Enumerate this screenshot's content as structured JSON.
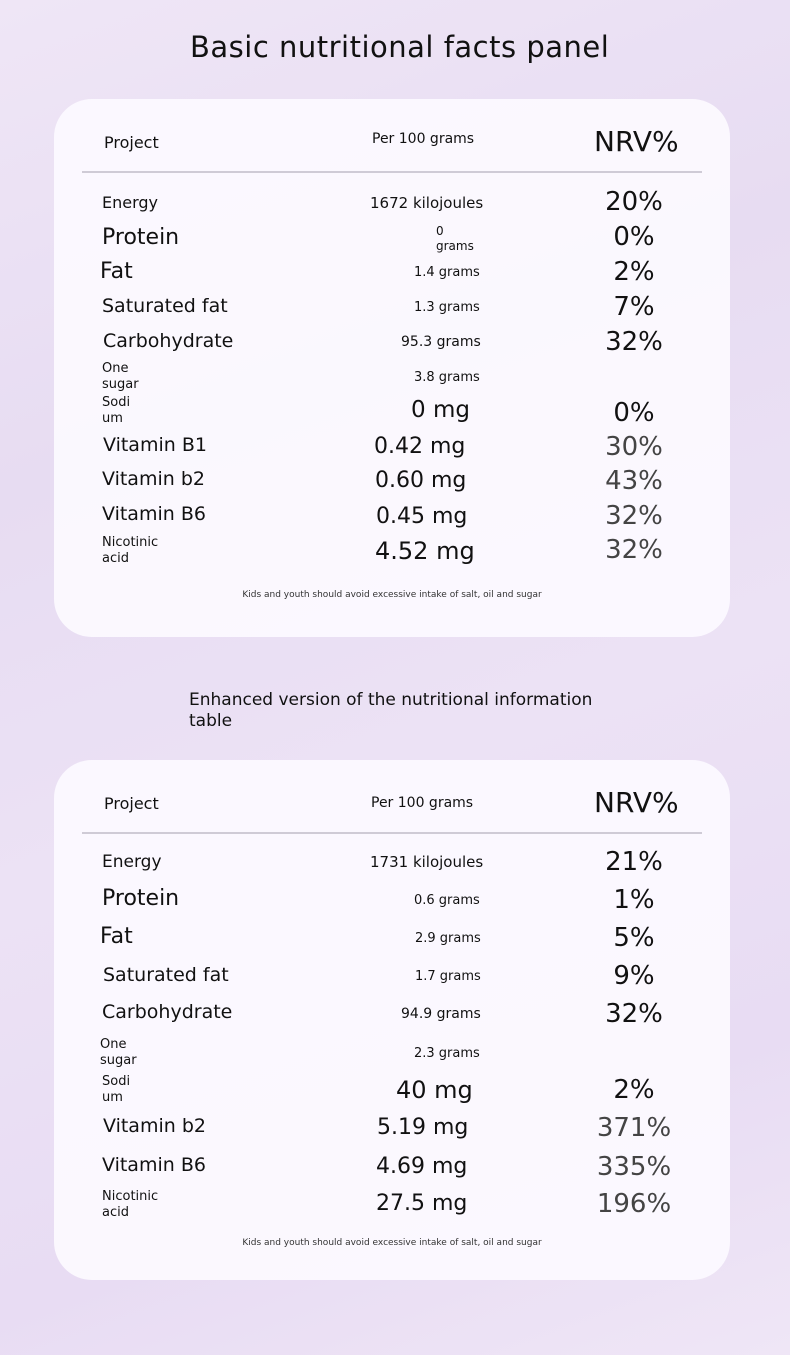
{
  "basic_panel": {
    "title": "Basic nutritional facts panel",
    "headers": {
      "project": "Project",
      "per": "Per 100 grams",
      "nrv": "NRV%"
    },
    "rows": [
      {
        "name": "Energy",
        "amount": "1672 kilojoules",
        "nrv": "20%"
      },
      {
        "name": "Protein",
        "amount_line1": "0",
        "amount_line2": "grams",
        "nrv": "0%"
      },
      {
        "name": "Fat",
        "amount": "1.4 grams",
        "nrv": "2%"
      },
      {
        "name": "Saturated fat",
        "amount": "1.3 grams",
        "nrv": "7%"
      },
      {
        "name": "Carbohydrate",
        "amount": "95.3 grams",
        "nrv": "32%"
      },
      {
        "name_line1": "One",
        "name_line2": "sugar",
        "amount": "3.8 grams",
        "nrv": ""
      },
      {
        "name_line1": "Sodi",
        "name_line2": "um",
        "amount": "0 mg",
        "nrv": "0%"
      },
      {
        "name": "Vitamin B1",
        "amount": "0.42 mg",
        "nrv": "30%"
      },
      {
        "name": "Vitamin b2",
        "amount": "0.60 mg",
        "nrv": "43%"
      },
      {
        "name": "Vitamin B6",
        "amount": "0.45 mg",
        "nrv": "32%"
      },
      {
        "name_line1": "Nicotinic",
        "name_line2": "acid",
        "amount": "4.52 mg",
        "nrv": "32%"
      }
    ],
    "footer": "Kids and youth should avoid excessive intake of salt, oil and sugar"
  },
  "enhanced_panel": {
    "title": "Enhanced version of the nutritional information table",
    "headers": {
      "project": "Project",
      "per": "Per 100 grams",
      "nrv": "NRV%"
    },
    "rows": [
      {
        "name": "Energy",
        "amount": "1731 kilojoules",
        "nrv": "21%"
      },
      {
        "name": "Protein",
        "amount": "0.6 grams",
        "nrv": "1%"
      },
      {
        "name": "Fat",
        "amount": "2.9 grams",
        "nrv": "5%"
      },
      {
        "name": "Saturated fat",
        "amount": "1.7 grams",
        "nrv": "9%"
      },
      {
        "name": "Carbohydrate",
        "amount": "94.9 grams",
        "nrv": "32%"
      },
      {
        "name_line1": "One",
        "name_line2": "sugar",
        "amount": "2.3 grams",
        "nrv": ""
      },
      {
        "name_line1": "Sodi",
        "name_line2": "um",
        "amount": "40 mg",
        "nrv": "2%"
      },
      {
        "name": "Vitamin b2",
        "amount": "5.19 mg",
        "nrv": "371%"
      },
      {
        "name": "Vitamin B6",
        "amount": "4.69 mg",
        "nrv": "335%"
      },
      {
        "name_line1": "Nicotinic",
        "name_line2": "acid",
        "amount": "27.5 mg",
        "nrv": "196%"
      }
    ],
    "footer": "Kids and youth should avoid excessive intake of salt, oil and sugar"
  }
}
